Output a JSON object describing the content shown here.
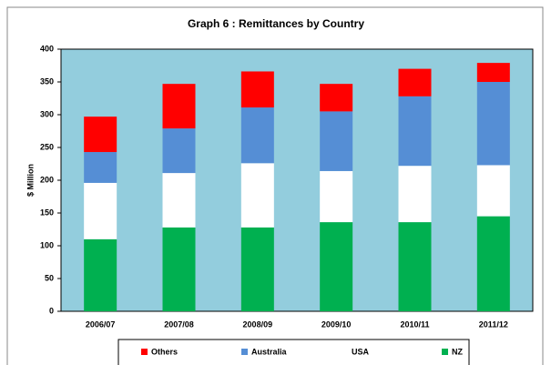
{
  "chart_data": {
    "type": "stacked-bar",
    "title": "Graph 6 : Remittances by Country",
    "y_label": "$ Million",
    "categories": [
      "2006/07",
      "2007/08",
      "2008/09",
      "2009/10",
      "2010/11",
      "2011/12"
    ],
    "series": [
      {
        "name": "NZ",
        "color": "#00b050",
        "values": [
          110,
          128,
          128,
          136,
          136,
          145
        ]
      },
      {
        "name": "USA",
        "color": "#ffffff",
        "values": [
          86,
          83,
          98,
          78,
          86,
          78
        ]
      },
      {
        "name": "Australia",
        "color": "#558ed5",
        "values": [
          47,
          68,
          85,
          91,
          106,
          127
        ]
      },
      {
        "name": "Others",
        "color": "#ff0000",
        "values": [
          54,
          68,
          55,
          42,
          42,
          29
        ]
      }
    ],
    "ylim": [
      0,
      400
    ],
    "yticks": [
      0,
      50,
      100,
      150,
      200,
      250,
      300,
      350,
      400
    ],
    "plot_background": "#93cddd"
  }
}
